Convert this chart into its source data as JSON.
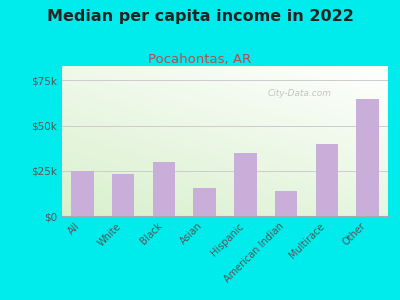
{
  "title": "Median per capita income in 2022",
  "subtitle": "Pocahontas, AR",
  "categories": [
    "All",
    "White",
    "Black",
    "Asian",
    "Hispanic",
    "American Indian",
    "Multirace",
    "Other"
  ],
  "values": [
    25000,
    23000,
    30000,
    15500,
    35000,
    14000,
    40000,
    65000
  ],
  "bar_color": "#c9aed9",
  "title_fontsize": 11.5,
  "subtitle_fontsize": 9.5,
  "subtitle_color": "#b05050",
  "background_color": "#00ecec",
  "yticks": [
    0,
    25000,
    50000,
    75000
  ],
  "ytick_labels": [
    "$0",
    "$25k",
    "$50k",
    "$75k"
  ],
  "ylim": [
    0,
    83000
  ],
  "watermark": "City-Data.com"
}
